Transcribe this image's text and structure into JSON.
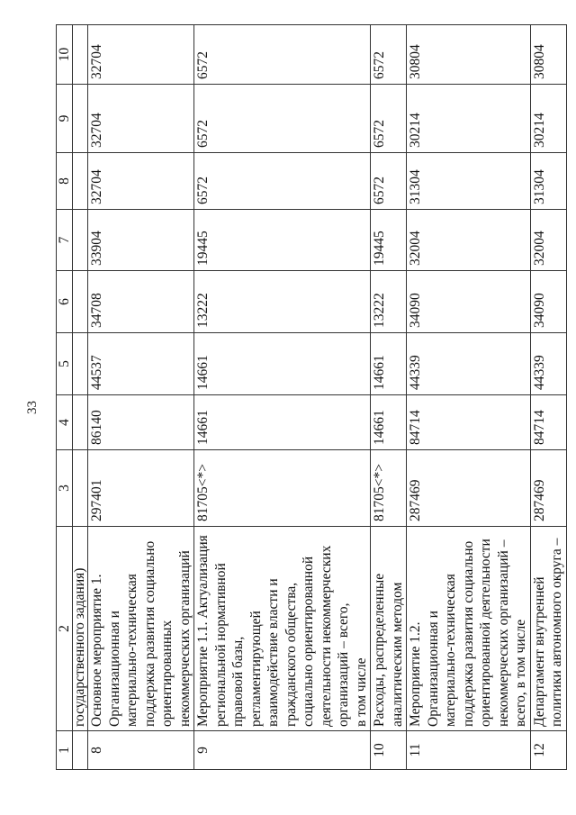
{
  "page_number": "33",
  "table": {
    "headers": [
      "1",
      "2",
      "3",
      "4",
      "5",
      "6",
      "7",
      "8",
      "9",
      "10"
    ],
    "continuation": "государственного задания)",
    "rows": [
      {
        "n": "8",
        "name": "Основное мероприятие 1.\nОрганизационная и\nматериально-техническая\nподдержка развития социально\nориентированных\nнекоммерческих организаций",
        "values": [
          "297401",
          "86140",
          "44537",
          "34708",
          "33904",
          "32704",
          "32704",
          "32704"
        ]
      },
      {
        "n": "9",
        "name": "Мероприятие 1.1. Актуализация\nрегиональной нормативной\nправовой базы,\nрегламентирующей\nвзаимодействие власти и\nгражданского общества,\nсоциально ориентированной\nдеятельности некоммерческих\nорганизаций – всего,\nв том числе",
        "values": [
          "81705<*>",
          "14661",
          "14661",
          "13222",
          "19445",
          "6572",
          "6572",
          "6572"
        ]
      },
      {
        "n": "10",
        "name": "Расходы, распределенные\nаналитическим методом",
        "values": [
          "81705<*>",
          "14661",
          "14661",
          "13222",
          "19445",
          "6572",
          "6572",
          "6572"
        ]
      },
      {
        "n": "11",
        "name": "Мероприятие 1.2.\nОрганизационная и\nматериально-техническая\nподдержка развития социально\nориентированной деятельности\nнекоммерческих организаций –\nвсего, в том числе",
        "values": [
          "287469",
          "84714",
          "44339",
          "34090",
          "32004",
          "31304",
          "30214",
          "30804"
        ]
      },
      {
        "n": "12",
        "name": "Департамент внутренней\nполитики автономного округа –",
        "values": [
          "287469",
          "84714",
          "44339",
          "34090",
          "32004",
          "31304",
          "30214",
          "30804"
        ]
      }
    ]
  }
}
